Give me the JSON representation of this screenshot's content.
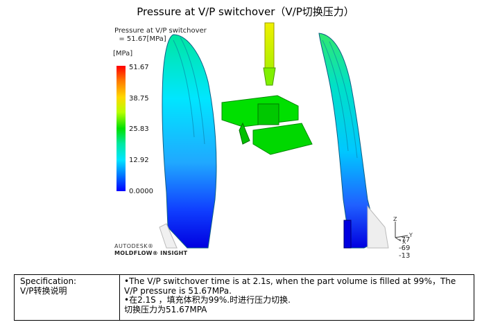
{
  "title": "Pressure at V/P switchover（V/P切换压力）",
  "result": {
    "label_line1": "Pressure at V/P switchover",
    "label_line2": "= 51.67[MPa]",
    "unit": "[MPa]"
  },
  "legend": {
    "ticks": [
      "51.67",
      "38.75",
      "25.83",
      "12.92",
      "0.0000"
    ]
  },
  "brand": {
    "line1": "AUTODESK®",
    "line2": "MOLDFLOW® INSIGHT"
  },
  "axes": {
    "z": "Z",
    "y": "Y",
    "x": "X",
    "nums": [
      "-77",
      "-69",
      "-13"
    ]
  },
  "spec": {
    "label_en": "Specification:",
    "label_cn": "V/P转换说明",
    "line1": "•The V/P switchover time is at 2.1s, when the part volume is filled at 99%，The",
    "line2": "V/P pressure is 51.67MPa.",
    "line3": "•在2.1S ，填充体积为99%.时进行压力切换.",
    "line4": "切换压力为51.67MPA"
  },
  "colors": {
    "red": "#ff0000",
    "green": "#00e000",
    "cyan": "#00e6ff",
    "blue": "#0000ff",
    "yellow": "#e8e800"
  }
}
